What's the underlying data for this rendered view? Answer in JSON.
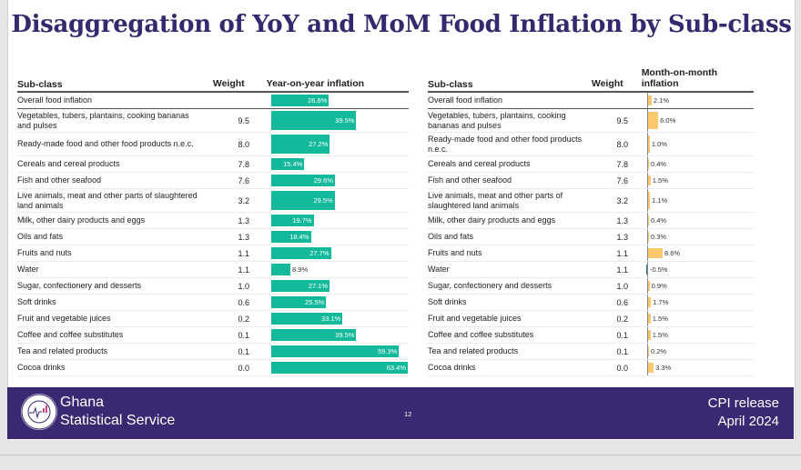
{
  "title": "Disaggregation of YoY and MoM Food Inflation by Sub-class",
  "footer": {
    "org_line1": "Ghana",
    "org_line2": "Statistical Service",
    "page_number": "12",
    "release_line1": "CPI release",
    "release_line2": "April  2024",
    "logo_top_text": "STATISTICAL SERVICE",
    "logo_bottom_text": "GHANA"
  },
  "colors": {
    "yoy_bar": "#12b99a",
    "mom_positive": "#fdc76c",
    "mom_negative": "#1f7a8c",
    "brand_purple": "#3a2872"
  },
  "chart_data": [
    {
      "type": "bar",
      "title": "Year-on-year inflation",
      "columns": [
        "Sub-class",
        "Weight",
        "Year-on-year inflation"
      ],
      "unit": "%",
      "categories": [
        "Overall food inflation",
        "Vegetables, tubers, plantains, cooking bananas and pulses",
        "Ready-made food and other food products n.e.c.",
        "Cereals and cereal products",
        "Fish and other seafood",
        "Live animals, meat and other parts of slaughtered land animals",
        "Milk, other dairy products and eggs",
        "Oils and fats",
        "Fruits and nuts",
        "Water",
        "Sugar, confectionery and desserts",
        "Soft drinks",
        "Fruit and vegetable juices",
        "Coffee and coffee substitutes",
        "Tea and related products",
        "Cocoa drinks"
      ],
      "weights": [
        "",
        "9.5",
        "8.0",
        "7.8",
        "7.6",
        "3.2",
        "1.3",
        "1.3",
        "1.1",
        "1.1",
        "1.0",
        "0.6",
        "0.2",
        "0.1",
        "0.1",
        "0.0"
      ],
      "values": [
        26.8,
        39.5,
        27.2,
        15.4,
        29.6,
        29.5,
        19.7,
        18.4,
        27.7,
        8.9,
        27.1,
        25.5,
        33.1,
        39.5,
        59.3,
        63.4
      ],
      "labels": [
        "26.8%",
        "39.5%",
        "27.2%",
        "15.4%",
        "29.6%",
        "29.5%",
        "19.7%",
        "18.4%",
        "27.7%",
        "8.9%",
        "27.1%",
        "25.5%",
        "33.1%",
        "39.5%",
        "59.3%",
        "63.4%"
      ]
    },
    {
      "type": "bar",
      "title": "Month-on-month inflation",
      "columns": [
        "Sub-class",
        "Weight",
        "Month-on-month inflation"
      ],
      "unit": "%",
      "categories": [
        "Overall food inflation",
        "Vegetables, tubers, plantains, cooking bananas and pulses",
        "Ready-made food and other food products n.e.c.",
        "Cereals and cereal products",
        "Fish and other seafood",
        "Live animals, meat and other parts of slaughtered land animals",
        "Milk, other dairy products and eggs",
        "Oils and fats",
        "Fruits and nuts",
        "Water",
        "Sugar, confectionery and desserts",
        "Soft drinks",
        "Fruit and vegetable juices",
        "Coffee and coffee substitutes",
        "Tea and related products",
        "Cocoa drinks"
      ],
      "weights": [
        "",
        "9.5",
        "8.0",
        "7.8",
        "7.6",
        "3.2",
        "1.3",
        "1.3",
        "1.1",
        "1.1",
        "1.0",
        "0.6",
        "0.2",
        "0.1",
        "0.1",
        "0.0"
      ],
      "values": [
        2.1,
        6.0,
        1.0,
        0.4,
        1.5,
        1.1,
        0.4,
        0.3,
        8.6,
        -0.5,
        0.9,
        1.7,
        1.5,
        1.5,
        0.2,
        3.3
      ],
      "labels": [
        "2.1%",
        "6.0%",
        "1.0%",
        "0.4%",
        "1.5%",
        "1.1%",
        "0.4%",
        "0.3%",
        "8.6%",
        "-0.5%",
        "0.9%",
        "1.7%",
        "1.5%",
        "1.5%",
        "0.2%",
        "3.3%"
      ]
    }
  ]
}
